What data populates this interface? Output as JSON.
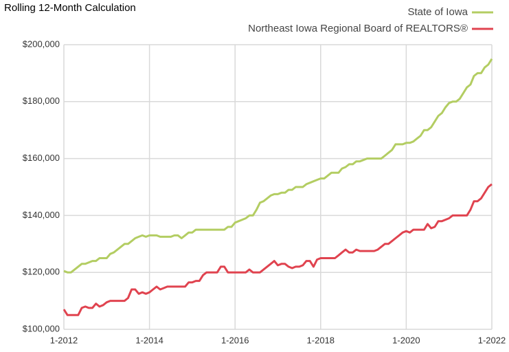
{
  "chart_data": {
    "type": "line",
    "title": "Rolling 12-Month Calculation",
    "categories": [
      "1-2012",
      null,
      null,
      null,
      null,
      null,
      null,
      null,
      null,
      null,
      null,
      null,
      null,
      null,
      null,
      null,
      null,
      null,
      null,
      null,
      null,
      null,
      null,
      null,
      "1-2014",
      null,
      null,
      null,
      null,
      null,
      null,
      null,
      null,
      null,
      null,
      null,
      null,
      null,
      null,
      null,
      null,
      null,
      null,
      null,
      null,
      null,
      null,
      null,
      "1-2016",
      null,
      null,
      null,
      null,
      null,
      null,
      null,
      null,
      null,
      null,
      null,
      null,
      null,
      null,
      null,
      null,
      null,
      null,
      null,
      null,
      null,
      null,
      null,
      "1-2018",
      null,
      null,
      null,
      null,
      null,
      null,
      null,
      null,
      null,
      null,
      null,
      null,
      null,
      null,
      null,
      null,
      null,
      null,
      null,
      null,
      null,
      null,
      null,
      "1-2020",
      null,
      null,
      null,
      null,
      null,
      null,
      null,
      null,
      null,
      null,
      null,
      null,
      null,
      null,
      null,
      null,
      null,
      null,
      null,
      null,
      null,
      null,
      null,
      "1-2022"
    ],
    "series": [
      {
        "name": "State of Iowa",
        "color": "#b3cd62",
        "values": [
          120500,
          120000,
          120000,
          121000,
          122000,
          123000,
          123000,
          123500,
          124000,
          124000,
          125000,
          125000,
          125000,
          126500,
          127000,
          128000,
          129000,
          130000,
          130000,
          131000,
          132000,
          132500,
          133000,
          132500,
          133000,
          133000,
          133000,
          132500,
          132500,
          132500,
          132500,
          133000,
          133000,
          132000,
          133000,
          134000,
          134000,
          135000,
          135000,
          135000,
          135000,
          135000,
          135000,
          135000,
          135000,
          135000,
          136000,
          136000,
          137500,
          138000,
          138500,
          139000,
          140000,
          140000,
          142000,
          144500,
          145000,
          146000,
          147000,
          147500,
          147500,
          148000,
          148000,
          149000,
          149000,
          150000,
          150000,
          150000,
          151000,
          151500,
          152000,
          152500,
          153000,
          153000,
          154000,
          155000,
          155000,
          155000,
          156500,
          157000,
          158000,
          158000,
          159000,
          159000,
          159500,
          160000,
          160000,
          160000,
          160000,
          160000,
          161000,
          162000,
          163000,
          165000,
          165000,
          165000,
          165500,
          165500,
          166000,
          167000,
          168000,
          170000,
          170000,
          171000,
          173000,
          175000,
          176000,
          178000,
          179500,
          180000,
          180000,
          181000,
          183000,
          185000,
          186000,
          189000,
          190000,
          190000,
          192000,
          193000,
          195000
        ]
      },
      {
        "name": "Northeast Iowa Regional Board of REALTORS®",
        "color": "#e0434f",
        "values": [
          107000,
          105000,
          105000,
          105000,
          105000,
          107500,
          108000,
          107500,
          107500,
          109000,
          108000,
          108500,
          109500,
          110000,
          110000,
          110000,
          110000,
          110000,
          111000,
          114000,
          114000,
          112500,
          113000,
          112500,
          113000,
          114000,
          115000,
          114000,
          114500,
          115000,
          115000,
          115000,
          115000,
          115000,
          115000,
          116500,
          116500,
          117000,
          117000,
          119000,
          120000,
          120000,
          120000,
          120000,
          122000,
          122000,
          120000,
          120000,
          120000,
          120000,
          120000,
          120000,
          121000,
          120000,
          120000,
          120000,
          121000,
          122000,
          123000,
          124000,
          122500,
          123000,
          123000,
          122000,
          121500,
          122000,
          122000,
          122500,
          124000,
          124000,
          122000,
          124500,
          125000,
          125000,
          125000,
          125000,
          125000,
          126000,
          127000,
          128000,
          127000,
          127000,
          128000,
          127500,
          127500,
          127500,
          127500,
          127500,
          128000,
          129000,
          130000,
          130000,
          131000,
          132000,
          133000,
          134000,
          134500,
          134000,
          135000,
          135000,
          135000,
          135000,
          137000,
          135500,
          136000,
          138000,
          138000,
          138500,
          139000,
          140000,
          140000,
          140000,
          140000,
          140000,
          142000,
          145000,
          145000,
          146000,
          148000,
          150000,
          151000
        ]
      }
    ],
    "ylim": [
      100000,
      200000
    ],
    "yticks": [
      {
        "value": 100000,
        "label": "$100,000"
      },
      {
        "value": 120000,
        "label": "$120,000"
      },
      {
        "value": 140000,
        "label": "$140,000"
      },
      {
        "value": 160000,
        "label": "$160,000"
      },
      {
        "value": 180000,
        "label": "$180,000"
      },
      {
        "value": 200000,
        "label": "$200,000"
      }
    ],
    "grid": true,
    "legend": "top-right"
  }
}
